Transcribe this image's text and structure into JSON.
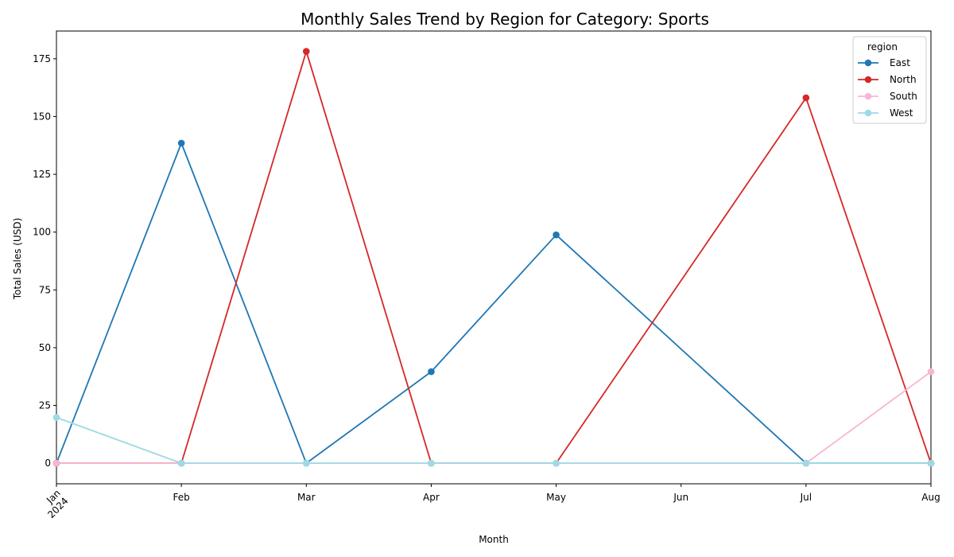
{
  "chart_data": {
    "type": "line",
    "title": "Monthly Sales Trend by Region for Category: Sports",
    "xlabel": "Month",
    "ylabel": "Total Sales (USD)",
    "x": [
      "2024-01",
      "2024-02",
      "2024-03",
      "2024-04",
      "2024-05",
      "2024-06",
      "2024-07",
      "2024-08"
    ],
    "x_tick_labels": [
      {
        "month": "Jan",
        "year": "2024"
      },
      {
        "month": "Feb",
        "year": ""
      },
      {
        "month": "Mar",
        "year": ""
      },
      {
        "month": "Apr",
        "year": ""
      },
      {
        "month": "May",
        "year": ""
      },
      {
        "month": "Jun",
        "year": ""
      },
      {
        "month": "Jul",
        "year": ""
      },
      {
        "month": "Aug",
        "year": ""
      }
    ],
    "ylim": [
      -8.9,
      187
    ],
    "y_ticks": [
      0,
      25,
      50,
      75,
      100,
      125,
      150,
      175
    ],
    "grid": false,
    "legend": {
      "title": "region",
      "placement": "top-right"
    },
    "series": [
      {
        "name": "East",
        "color": "#1f77b4",
        "points": [
          [
            "2024-01",
            0
          ],
          [
            "2024-02",
            138.5
          ],
          [
            "2024-03",
            0
          ],
          [
            "2024-04",
            39.6
          ],
          [
            "2024-05",
            98.8
          ],
          [
            "2024-07",
            0
          ],
          [
            "2024-08",
            0
          ]
        ]
      },
      {
        "name": "North",
        "color": "#d62728",
        "points": [
          [
            "2024-01",
            0
          ],
          [
            "2024-02",
            0
          ],
          [
            "2024-03",
            178.2
          ],
          [
            "2024-04",
            0
          ],
          [
            "2024-05",
            0
          ],
          [
            "2024-07",
            158.1
          ],
          [
            "2024-08",
            0
          ]
        ]
      },
      {
        "name": "South",
        "color": "#f7b6d2",
        "points": [
          [
            "2024-01",
            0
          ],
          [
            "2024-02",
            0
          ],
          [
            "2024-03",
            0
          ],
          [
            "2024-04",
            0
          ],
          [
            "2024-05",
            0
          ],
          [
            "2024-07",
            0
          ],
          [
            "2024-08",
            39.6
          ]
        ]
      },
      {
        "name": "West",
        "color": "#9edae5",
        "points": [
          [
            "2024-01",
            19.8
          ],
          [
            "2024-02",
            0
          ],
          [
            "2024-03",
            0
          ],
          [
            "2024-04",
            0
          ],
          [
            "2024-05",
            0
          ],
          [
            "2024-07",
            0
          ],
          [
            "2024-08",
            0
          ]
        ]
      }
    ]
  }
}
